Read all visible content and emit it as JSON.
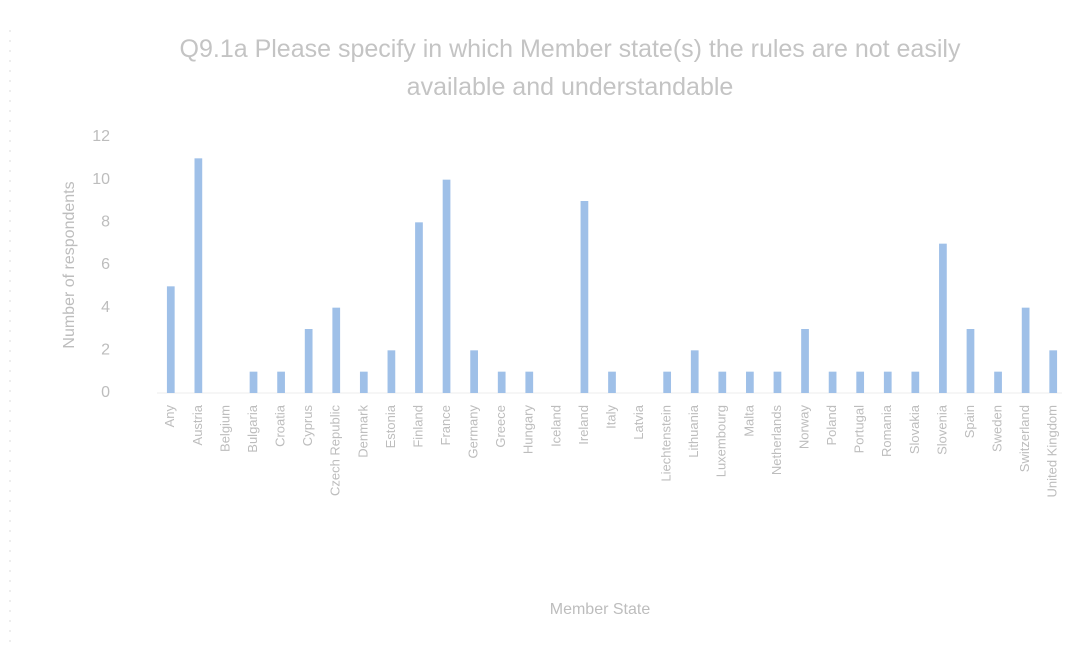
{
  "chart_data": {
    "type": "bar",
    "title": "Q9.1a Please specify in which Member state(s) the rules are not easily available and understandable",
    "x_label": "Member State",
    "y_label": "Number of respondents",
    "categories": [
      "Any",
      "Austria",
      "Belgium",
      "Bulgaria",
      "Croatia",
      "Cyprus",
      "Czech Republic",
      "Denmark",
      "Estonia",
      "Finland",
      "France",
      "Germany",
      "Greece",
      "Hungary",
      "Iceland",
      "Ireland",
      "Italy",
      "Latvia",
      "Liechtenstein",
      "Lithuania",
      "Luxembourg",
      "Malta",
      "Netherlands",
      "Norway",
      "Poland",
      "Portugal",
      "Romania",
      "Slovakia",
      "Slovenia",
      "Spain",
      "Sweden",
      "Switzerland",
      "United Kingdom"
    ],
    "values": [
      5,
      11,
      0,
      1,
      1,
      3,
      4,
      1,
      2,
      8,
      10,
      2,
      1,
      1,
      0,
      9,
      1,
      0,
      1,
      2,
      1,
      1,
      1,
      3,
      1,
      1,
      1,
      1,
      7,
      3,
      1,
      4,
      2
    ],
    "color": "#9fc0e8",
    "ylim": [
      0,
      12
    ],
    "yticks": [
      0,
      2,
      4,
      6,
      8,
      10,
      12
    ],
    "grid": false
  }
}
